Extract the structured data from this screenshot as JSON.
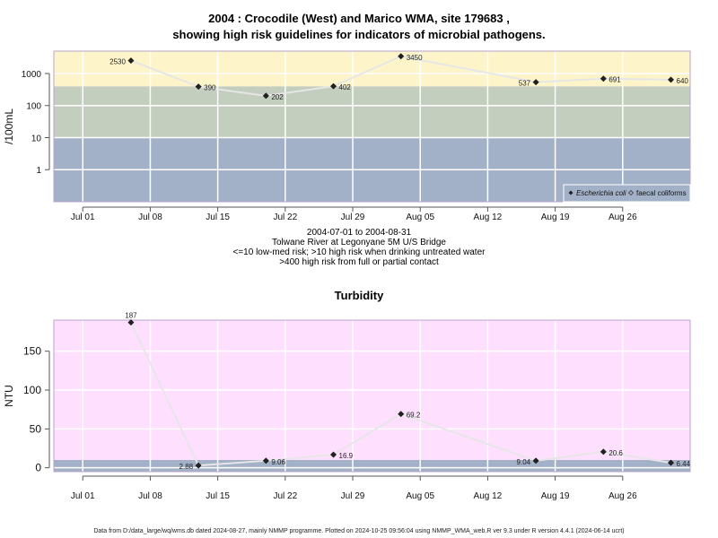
{
  "chart_data": [
    {
      "type": "line",
      "title_line1": "2004 : Crocodile (West) and Marico WMA, site 179683 ,",
      "title_line2": "showing high risk guidelines for indicators of microbial pathogens.",
      "ylabel": "/100mL",
      "yscale": "log",
      "ylim": [
        0.1,
        5000
      ],
      "yticks": [
        1,
        10,
        100,
        1000
      ],
      "ytick_labels": [
        "1",
        "10",
        "100",
        "1000"
      ],
      "xticks": [
        "2004-07-01",
        "2004-07-08",
        "2004-07-15",
        "2004-07-22",
        "2004-07-29",
        "2004-08-05",
        "2004-08-12",
        "2004-08-19",
        "2004-08-26"
      ],
      "xtick_labels": [
        "Jul 01",
        "Jul 08",
        "Jul 15",
        "Jul 22",
        "Jul 29",
        "Aug 05",
        "Aug 12",
        "Aug 19",
        "Aug 26"
      ],
      "xlim": [
        "2004-06-28",
        "2004-09-02"
      ],
      "bands": [
        {
          "from": 0.1,
          "to": 10,
          "color": "#a2b1c8"
        },
        {
          "from": 10,
          "to": 400,
          "color": "#c4cebf"
        },
        {
          "from": 400,
          "to": 5000,
          "color": "#fdf5c9"
        }
      ],
      "grid": true,
      "legend_position": "bottom-right",
      "series": [
        {
          "name": "Escherichia coli",
          "marker": "filled-diamond",
          "x": [
            "2004-07-06",
            "2004-07-13",
            "2004-07-20",
            "2004-07-27",
            "2004-08-03",
            "2004-08-17",
            "2004-08-24",
            "2004-08-31"
          ],
          "y": [
            2530,
            390,
            202,
            402,
            3450,
            537,
            691,
            640
          ],
          "labels": [
            "2530",
            "390",
            "202",
            "402",
            "3450",
            "537",
            "691",
            "640"
          ]
        },
        {
          "name": "faecal coliforms",
          "marker": "open-diamond",
          "x": [],
          "y": []
        }
      ]
    },
    {
      "type": "line",
      "title": "Turbidity",
      "ylabel": "NTU",
      "ylim": [
        -5,
        190
      ],
      "yticks": [
        0,
        50,
        100,
        150
      ],
      "ytick_labels": [
        "0",
        "50",
        "100",
        "150"
      ],
      "xticks": [
        "2004-07-01",
        "2004-07-08",
        "2004-07-15",
        "2004-07-22",
        "2004-07-29",
        "2004-08-05",
        "2004-08-12",
        "2004-08-19",
        "2004-08-26"
      ],
      "xtick_labels": [
        "Jul 01",
        "Jul 08",
        "Jul 15",
        "Jul 22",
        "Jul 29",
        "Aug 05",
        "Aug 12",
        "Aug 19",
        "Aug 26"
      ],
      "xlim": [
        "2004-06-28",
        "2004-09-02"
      ],
      "bands": [
        {
          "from": -5,
          "to": 10,
          "color": "#a2b1c8"
        },
        {
          "from": 10,
          "to": 190,
          "color": "#fee0fe"
        }
      ],
      "grid": true,
      "series": [
        {
          "x": [
            "2004-07-06",
            "2004-07-13",
            "2004-07-20",
            "2004-07-27",
            "2004-08-03",
            "2004-08-17",
            "2004-08-24",
            "2004-08-31"
          ],
          "y": [
            187,
            2.88,
            9.06,
            16.9,
            69.2,
            9.04,
            20.6,
            6.44
          ],
          "labels": [
            "187",
            "2.88",
            "9.06",
            "16.9",
            "69.2",
            "9.04",
            "20.6",
            "6.44"
          ]
        }
      ]
    }
  ],
  "captions": {
    "date_range": "2004-07-01 to 2004-08-31",
    "site_name": "Tolwane River at Legonyane 5M U/S Bridge",
    "risk_note1": "<=10 low-med risk; >10 high risk when drinking untreated water",
    "risk_note2": ">400 high risk from full or partial contact"
  },
  "footer": "Data from D:/data_large/wq/wms.db dated 2024-08-27, mainly NMMP programme. Plotted on 2024-10-25 09:56:04 using NMMP_WMA_web.R ver 9.3 under R version 4.4.1 (2024-06-14 ucrt)",
  "colors": {
    "line": "#e6e6e6",
    "grid": "#ffffff",
    "marker": "#222222",
    "axis": "#555555",
    "frame": "#b8a4c8"
  }
}
